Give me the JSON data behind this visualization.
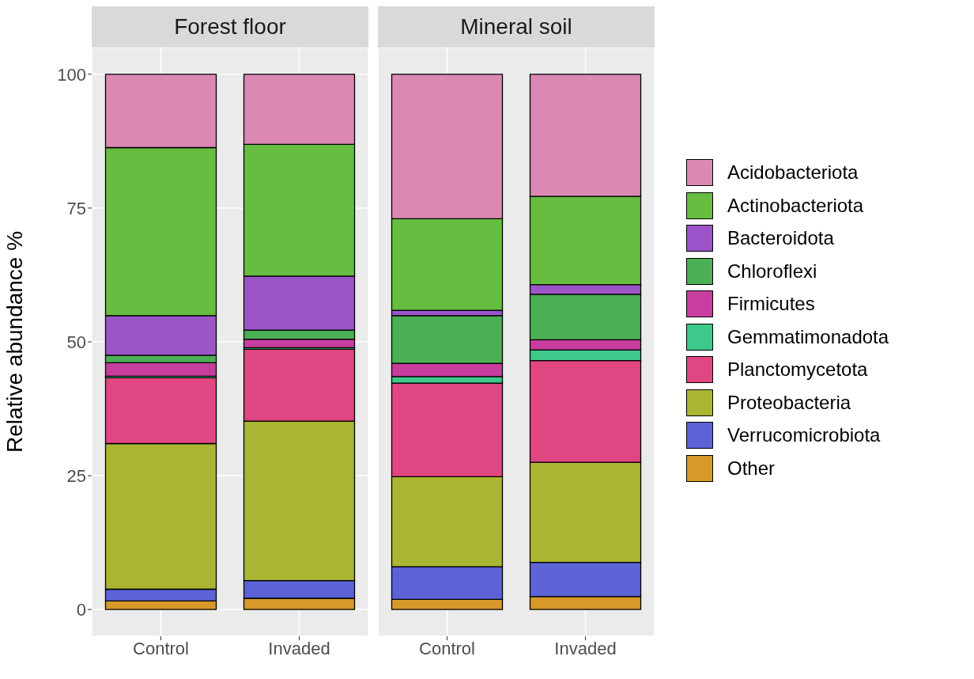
{
  "chart_data": [
    {
      "type": "bar",
      "title": "Forest floor",
      "ylabel": "Relative abundance %",
      "categories": [
        "Control",
        "Invaded"
      ],
      "stacked": true,
      "ylim": [
        -5,
        105
      ],
      "yticks": [
        0,
        25,
        50,
        75,
        100
      ],
      "grid": true,
      "legend": "right",
      "series": [
        {
          "name": "Other",
          "color": "#d7992a",
          "values": [
            1.6,
            2.1
          ]
        },
        {
          "name": "Verrucomicrobiota",
          "color": "#5b63d6",
          "values": [
            2.2,
            3.3
          ]
        },
        {
          "name": "Proteobacteria",
          "color": "#aab533",
          "values": [
            27.2,
            29.8
          ]
        },
        {
          "name": "Planctomycetota",
          "color": "#e04682",
          "values": [
            12.3,
            13.4
          ]
        },
        {
          "name": "Gemmatimonadota",
          "color": "#3cc98a",
          "values": [
            0.3,
            0.3
          ]
        },
        {
          "name": "Firmicutes",
          "color": "#c73e9e",
          "values": [
            2.5,
            1.6
          ]
        },
        {
          "name": "Chloroflexi",
          "color": "#4caf55",
          "values": [
            1.4,
            1.7
          ]
        },
        {
          "name": "Bacteroidota",
          "color": "#9b55c9",
          "values": [
            7.4,
            10.1
          ]
        },
        {
          "name": "Actinobacteriota",
          "color": "#66bd40",
          "values": [
            31.4,
            24.6
          ]
        },
        {
          "name": "Acidobacteriota",
          "color": "#db88b4",
          "values": [
            13.7,
            13.1
          ]
        }
      ]
    },
    {
      "type": "bar",
      "title": "Mineral soil",
      "categories": [
        "Control",
        "Invaded"
      ],
      "stacked": true,
      "ylim": [
        -5,
        105
      ],
      "yticks": [
        0,
        25,
        50,
        75,
        100
      ],
      "grid": true,
      "legend": "right",
      "tick_labels": "x",
      "series": [
        {
          "name": "Other",
          "color": "#d7992a",
          "values": [
            1.9,
            2.4
          ]
        },
        {
          "name": "Verrucomicrobiota",
          "color": "#5b63d6",
          "values": [
            6.1,
            6.4
          ]
        },
        {
          "name": "Proteobacteria",
          "color": "#aab533",
          "values": [
            16.8,
            18.7
          ]
        },
        {
          "name": "Planctomycetota",
          "color": "#e04682",
          "values": [
            17.5,
            19.0
          ]
        },
        {
          "name": "Gemmatimonadota",
          "color": "#3cc98a",
          "values": [
            1.2,
            2.0
          ]
        },
        {
          "name": "Firmicutes",
          "color": "#c73e9e",
          "values": [
            2.5,
            1.9
          ]
        },
        {
          "name": "Chloroflexi",
          "color": "#4caf55",
          "values": [
            8.9,
            8.5
          ]
        },
        {
          "name": "Bacteroidota",
          "color": "#9b55c9",
          "values": [
            1.0,
            1.8
          ]
        },
        {
          "name": "Actinobacteriota",
          "color": "#66bd40",
          "values": [
            17.1,
            16.5
          ]
        },
        {
          "name": "Acidobacteriota",
          "color": "#db88b4",
          "values": [
            27.0,
            22.8
          ]
        }
      ]
    }
  ]
}
